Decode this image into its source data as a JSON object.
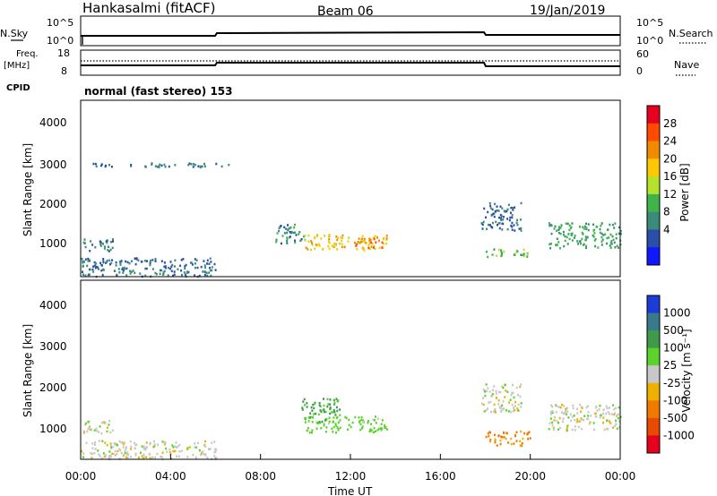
{
  "header": {
    "station": "Hankasalmi (fitACF)",
    "beam": "Beam 06",
    "date": "19/Jan/2019"
  },
  "noise_panel": {
    "left_label": "N.Sky",
    "right_label": "N.Search",
    "left_ticks": [
      "10^5",
      "10^0"
    ],
    "right_ticks": [
      "10^5",
      "10^0"
    ]
  },
  "freq_panel": {
    "left_label_1": "Freq.",
    "left_label_2": "[MHz]",
    "right_label": "Nave",
    "left_ticks": [
      "18",
      "8"
    ],
    "right_ticks": [
      "60",
      "0"
    ]
  },
  "cpid": {
    "label": "CPID",
    "value": "normal (fast stereo) 153"
  },
  "power_panel": {
    "ylabel": "Slant Range [km]",
    "yticks": [
      "4000",
      "3000",
      "2000",
      "1000"
    ],
    "colorbar": {
      "title": "Power [dB]",
      "labels": [
        "28",
        "24",
        "20",
        "16",
        "12",
        "8",
        "4"
      ],
      "colors": [
        "#e8001f",
        "#ff4a00",
        "#f08a00",
        "#ffc800",
        "#b5e22a",
        "#3fb44a",
        "#3a8c78",
        "#2a4fa8",
        "#1018ff"
      ]
    }
  },
  "velocity_panel": {
    "ylabel": "Slant Range [km]",
    "yticks": [
      "4000",
      "3000",
      "2000",
      "1000"
    ],
    "colorbar": {
      "title": "Velocity [m s⁻¹]",
      "labels": [
        "1000",
        "500",
        "100",
        "25",
        "-25",
        "-100",
        "-500",
        "-1000"
      ],
      "colors": [
        "#1d3bd6",
        "#3a7a8c",
        "#3f9a4a",
        "#5ad42a",
        "#c8c8c8",
        "#f0b000",
        "#f07a00",
        "#e84a00",
        "#e8001f"
      ]
    }
  },
  "xaxis": {
    "ticks": [
      "00:00",
      "04:00",
      "08:00",
      "12:00",
      "16:00",
      "20:00",
      "00:00"
    ],
    "label": "Time UT"
  },
  "chart_data": {
    "type": "heatmap",
    "x_range_hours": [
      0,
      24
    ],
    "y_range_km": [
      180,
      4600
    ],
    "power_clusters": [
      {
        "t": [
          0.1,
          1.4
        ],
        "r": [
          800,
          1150
        ],
        "dB": 8
      },
      {
        "t": [
          0.0,
          6.0
        ],
        "r": [
          180,
          650
        ],
        "dB": 6
      },
      {
        "t": [
          8.6,
          10.0
        ],
        "r": [
          1000,
          1500
        ],
        "dB": 8
      },
      {
        "t": [
          9.9,
          13.6
        ],
        "r": [
          850,
          1250
        ],
        "dB": 20
      },
      {
        "t": [
          12.2,
          13.4
        ],
        "r": [
          900,
          1150
        ],
        "dB": 26
      },
      {
        "t": [
          17.8,
          19.6
        ],
        "r": [
          1350,
          2050
        ],
        "dB": 6
      },
      {
        "t": [
          18.0,
          20.0
        ],
        "r": [
          680,
          880
        ],
        "dB": 12
      },
      {
        "t": [
          20.8,
          24.0
        ],
        "r": [
          900,
          1550
        ],
        "dB": 10
      },
      {
        "t": [
          0.5,
          7.0
        ],
        "r": [
          2950,
          3050
        ],
        "dB": 6
      }
    ],
    "velocity_clusters": [
      {
        "t": [
          0.1,
          1.4
        ],
        "r": [
          800,
          1150
        ],
        "v": 0
      },
      {
        "t": [
          0.0,
          6.0
        ],
        "r": [
          180,
          650
        ],
        "v": 0
      },
      {
        "t": [
          9.9,
          13.6
        ],
        "r": [
          850,
          1250
        ],
        "v": 60
      },
      {
        "t": [
          9.8,
          11.5
        ],
        "r": [
          1100,
          1700
        ],
        "v": 120
      },
      {
        "t": [
          17.8,
          19.6
        ],
        "r": [
          1350,
          2050
        ],
        "v": 0
      },
      {
        "t": [
          18.0,
          20.0
        ],
        "r": [
          520,
          880
        ],
        "v": -120
      },
      {
        "t": [
          20.8,
          24.0
        ],
        "r": [
          900,
          1550
        ],
        "v": 0
      }
    ]
  }
}
